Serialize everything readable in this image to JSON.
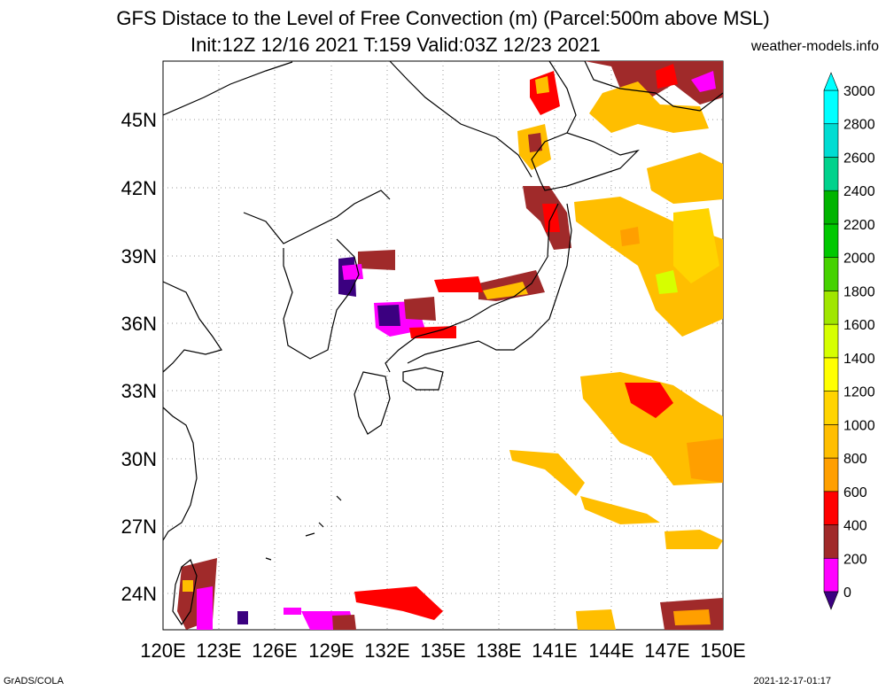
{
  "header": {
    "title_line1": "GFS Distace to the Level of Free Convection (m) (Parcel:500m above MSL)",
    "title_line2": "Init:12Z 12/16 2021 T:159 Valid:03Z 12/23 2021",
    "site": "weather-models.info"
  },
  "footer": {
    "left": "GrADS/COLA",
    "right": "2021-12-17-01:17"
  },
  "map": {
    "lon_range": [
      120,
      150
    ],
    "lat_range": [
      22.5,
      47.3
    ],
    "lat_labels": [
      "45N",
      "42N",
      "39N",
      "36N",
      "33N",
      "30N",
      "27N",
      "24N"
    ],
    "lat_values": [
      45,
      42,
      39,
      36,
      33,
      30,
      27,
      24
    ],
    "lon_labels": [
      "120E",
      "123E",
      "126E",
      "129E",
      "132E",
      "135E",
      "138E",
      "141E",
      "144E",
      "147E",
      "150E"
    ],
    "lon_values": [
      120,
      123,
      126,
      129,
      132,
      135,
      138,
      141,
      144,
      147,
      150
    ]
  },
  "colorbar": {
    "labels": [
      "0",
      "200",
      "400",
      "600",
      "800",
      "1000",
      "1200",
      "1400",
      "1600",
      "1800",
      "2000",
      "2200",
      "2400",
      "2600",
      "2800",
      "3000"
    ],
    "colors": [
      "#3b0080",
      "#ff00ff",
      "#a02a2a",
      "#ff0000",
      "#ff9f00",
      "#ffbe00",
      "#ffd400",
      "#ffff00",
      "#d6ff00",
      "#a0e600",
      "#46d200",
      "#00c800",
      "#00b400",
      "#00d28c",
      "#00dcd2",
      "#00ffff"
    ]
  }
}
